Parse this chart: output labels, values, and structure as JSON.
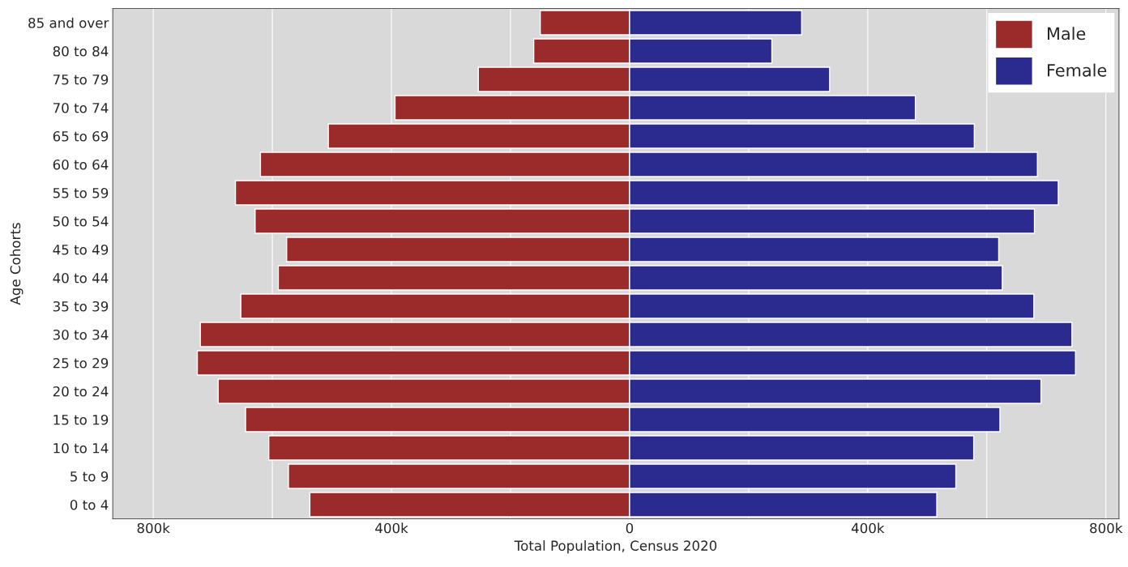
{
  "chart_data": {
    "type": "bar",
    "orientation": "horizontal",
    "xlabel": "Total Population, Census 2020",
    "ylabel": "Age Cohorts",
    "categories": [
      "85 and over",
      "80 to 84",
      "75 to 79",
      "70 to 74",
      "65 to 69",
      "60 to 64",
      "55 to 59",
      "50 to 54",
      "45 to 49",
      "40 to 44",
      "35 to 39",
      "30 to 34",
      "25 to 29",
      "20 to 24",
      "15 to 19",
      "10 to 14",
      "5 to 9",
      "0 to 4"
    ],
    "series": [
      {
        "name": "Male",
        "color": "#9b2a2a",
        "values": [
          -150000,
          -161000,
          -254000,
          -394000,
          -506000,
          -620000,
          -662000,
          -629000,
          -576000,
          -590000,
          -653000,
          -721000,
          -726000,
          -691000,
          -645000,
          -606000,
          -573000,
          -537000
        ]
      },
      {
        "name": "Female",
        "color": "#2b2a8f",
        "values": [
          289000,
          239000,
          336000,
          480000,
          579000,
          685000,
          720000,
          680000,
          620000,
          626000,
          679000,
          743000,
          749000,
          691000,
          622000,
          578000,
          548000,
          516000
        ]
      }
    ],
    "xlim": [
      -868000,
      822000
    ],
    "xticks": [
      {
        "value": -800000,
        "label": "800k"
      },
      {
        "value": -600000,
        "label": null
      },
      {
        "value": -400000,
        "label": "400k"
      },
      {
        "value": -200000,
        "label": null
      },
      0,
      {
        "value": 200000,
        "label": null
      },
      {
        "value": 400000,
        "label": "400k"
      },
      {
        "value": 600000,
        "label": null
      },
      {
        "value": 800000,
        "label": "800k"
      }
    ],
    "grid": true,
    "legend": "top right",
    "stacked": true
  }
}
